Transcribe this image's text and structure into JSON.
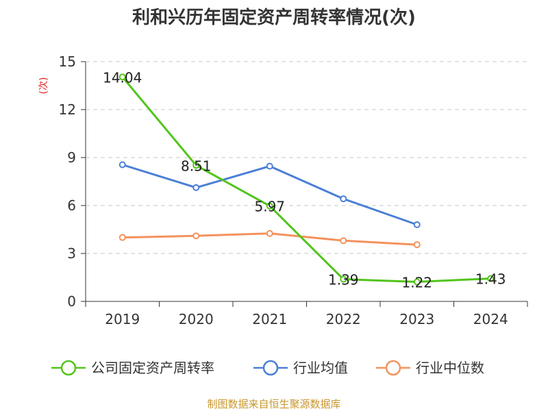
{
  "chart_data": {
    "type": "line",
    "title": "利和兴历年固定资产周转率情况(次)",
    "ylabel": "(次)",
    "xlabel": "",
    "categories": [
      "2019",
      "2020",
      "2021",
      "2022",
      "2023",
      "2024"
    ],
    "ylim": [
      0,
      15
    ],
    "yticks": [
      0,
      3,
      6,
      9,
      12,
      15
    ],
    "grid": true,
    "legend_position": "bottom",
    "series": [
      {
        "name": "公司固定资产周转率",
        "color": "#52c41a",
        "values": [
          14.04,
          8.51,
          5.97,
          1.39,
          1.22,
          1.43
        ],
        "labels": [
          "14.04",
          "8.51",
          "5.97",
          "1.39",
          "1.22",
          "1.43"
        ]
      },
      {
        "name": "行业均值",
        "color": "#4a7fd6",
        "values": [
          8.55,
          7.12,
          8.46,
          6.42,
          4.8,
          null
        ]
      },
      {
        "name": "行业中位数",
        "color": "#f4925c",
        "values": [
          4.0,
          4.1,
          4.25,
          3.8,
          3.55,
          null
        ]
      }
    ]
  },
  "source": "制图数据来自恒生聚源数据库"
}
